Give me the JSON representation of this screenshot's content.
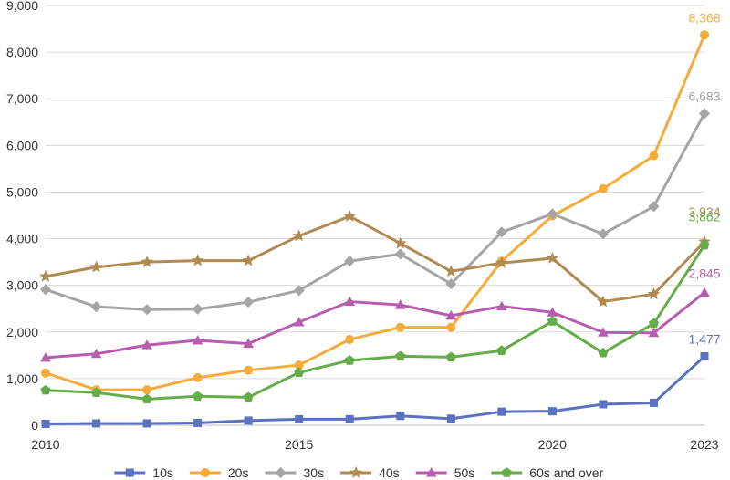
{
  "chart_data": {
    "type": "line",
    "x": [
      2010,
      2011,
      2012,
      2013,
      2014,
      2015,
      2016,
      2017,
      2018,
      2019,
      2020,
      2021,
      2022,
      2023
    ],
    "x_tick_labels": [
      {
        "x": 2010,
        "label": "2010"
      },
      {
        "x": 2015,
        "label": "2015"
      },
      {
        "x": 2020,
        "label": "2020"
      },
      {
        "x": 2023,
        "label": "2023"
      }
    ],
    "ylim": [
      0,
      9000
    ],
    "y_ticks": [
      0,
      1000,
      2000,
      3000,
      4000,
      5000,
      6000,
      7000,
      8000,
      9000
    ],
    "y_tick_labels": [
      "0",
      "1,000",
      "2,000",
      "3,000",
      "4,000",
      "5,000",
      "6,000",
      "7,000",
      "8,000",
      "9,000"
    ],
    "grid": "horizontal",
    "legend_position": "bottom",
    "series": [
      {
        "name": "10s",
        "color": "#5b72c0",
        "marker": "square",
        "values": [
          30,
          40,
          40,
          50,
          100,
          130,
          130,
          200,
          140,
          290,
          300,
          450,
          480,
          1477
        ],
        "end_label": "1,477"
      },
      {
        "name": "20s",
        "color": "#f5ac3a",
        "marker": "circle",
        "values": [
          1120,
          760,
          760,
          1020,
          1180,
          1290,
          1840,
          2100,
          2100,
          3520,
          4490,
          5070,
          5780,
          8368
        ],
        "end_label": "8,368"
      },
      {
        "name": "30s",
        "color": "#a5a5a5",
        "marker": "diamond",
        "values": [
          2910,
          2540,
          2480,
          2490,
          2640,
          2890,
          3520,
          3670,
          3030,
          4140,
          4530,
          4100,
          4690,
          6683
        ],
        "end_label": "6,683"
      },
      {
        "name": "40s",
        "color": "#b08a52",
        "marker": "star",
        "values": [
          3190,
          3390,
          3500,
          3530,
          3530,
          4060,
          4480,
          3900,
          3300,
          3480,
          3580,
          2650,
          2810,
          3934
        ],
        "end_label": "3,934"
      },
      {
        "name": "50s",
        "color": "#b85cb0",
        "marker": "triangle",
        "values": [
          1450,
          1530,
          1720,
          1820,
          1750,
          2210,
          2650,
          2580,
          2350,
          2550,
          2420,
          1990,
          1980,
          2845
        ],
        "end_label": "2,845"
      },
      {
        "name": "60s and over",
        "color": "#65ad4a",
        "marker": "pentagon",
        "values": [
          750,
          700,
          560,
          620,
          600,
          1130,
          1390,
          1480,
          1460,
          1600,
          2230,
          1550,
          2180,
          3862
        ],
        "end_label": "3,862"
      }
    ]
  }
}
